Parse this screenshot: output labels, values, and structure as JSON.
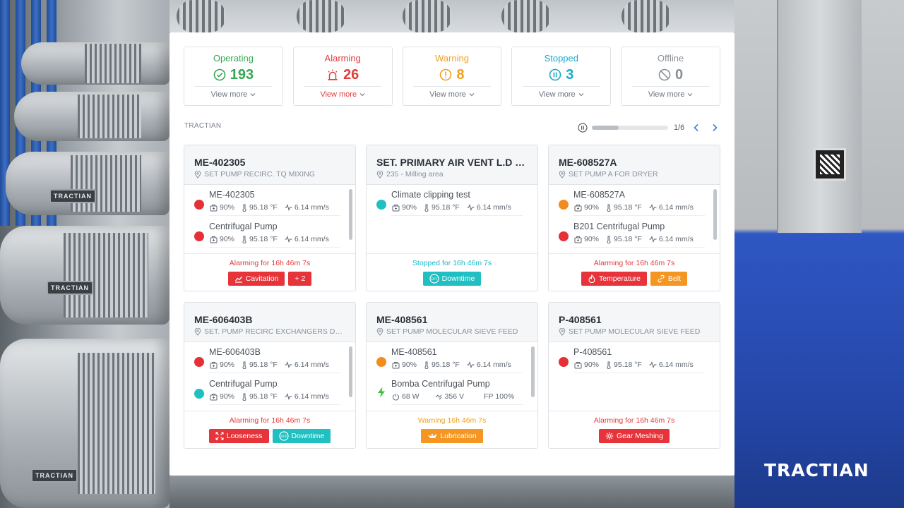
{
  "summary": [
    {
      "key": "operating",
      "title": "Operating",
      "count": "193",
      "more": "View more",
      "color": "#34a853",
      "icon": "check-circle-icon"
    },
    {
      "key": "alarming",
      "title": "Alarming",
      "count": "26",
      "more": "View more",
      "color": "#e23c3c",
      "icon": "siren-icon"
    },
    {
      "key": "warning",
      "title": "Warning",
      "count": "8",
      "more": "View more",
      "color": "#f0a020",
      "icon": "exclamation-circle-icon"
    },
    {
      "key": "stopped",
      "title": "Stopped",
      "count": "3",
      "more": "View more",
      "color": "#1ba9c6",
      "icon": "pause-circle-icon"
    },
    {
      "key": "offline",
      "title": "Offline",
      "count": "0",
      "more": "View more",
      "color": "#8b9096",
      "icon": "prohibited-icon"
    }
  ],
  "section_label": "TRACTIAN",
  "pager": {
    "text": "1/6",
    "progress": 0.35
  },
  "brand": "TRACTIAN",
  "cards": [
    {
      "title": "ME-402305",
      "subtitle": "SET PUMP RECIRC. TQ MIXING",
      "assets": [
        {
          "name": "ME-402305",
          "dot": "#e53038",
          "m1": "90%",
          "m2": "95.18 °F",
          "m3": "6.14 mm/s"
        },
        {
          "name": "Centrifugal Pump",
          "dot": "#e53038",
          "m1": "90%",
          "m2": "95.18 °F",
          "m3": "6.14 mm/s"
        }
      ],
      "status": "Alarming for",
      "status_color": "#e23c3c",
      "duration": "16h 46m 7s",
      "tags": [
        {
          "label": "Cavitation",
          "style": "red",
          "icon": "chart-line-icon"
        },
        {
          "label": "+ 2",
          "style": "red",
          "icon": ""
        }
      ]
    },
    {
      "title": "SET. PRIMARY AIR VENT L.D B...",
      "subtitle": "235 - Milling area",
      "assets": [
        {
          "name": "Climate clipping test",
          "dot": "#1fbfc2",
          "m1": "90%",
          "m2": "95.18 °F",
          "m3": "6.14 mm/s"
        }
      ],
      "status": "Stopped for",
      "status_color": "#1fb7c7",
      "duration": "16h 46m 7s",
      "tags": [
        {
          "label": "Downtime",
          "style": "teal",
          "icon": "off-icon"
        }
      ]
    },
    {
      "title": "ME-608527A",
      "subtitle": "SET PUMP A FOR DRYER",
      "assets": [
        {
          "name": "ME-608527A",
          "dot": "#f28c1e",
          "m1": "90%",
          "m2": "95.18 °F",
          "m3": "6.14 mm/s"
        },
        {
          "name": "B201 Centrifugal Pump",
          "dot": "#e53038",
          "m1": "90%",
          "m2": "95.18 °F",
          "m3": "6.14 mm/s"
        }
      ],
      "status": "Alarming for",
      "status_color": "#e23c3c",
      "duration": "16h 46m 7s",
      "tags": [
        {
          "label": "Temperature",
          "style": "red",
          "icon": "flame-icon"
        },
        {
          "label": "Belt",
          "style": "orange",
          "icon": "link-icon"
        }
      ]
    },
    {
      "title": "ME-606403B",
      "subtitle": "SET. PUMP RECIRC EXCHANGERS DOR...",
      "assets": [
        {
          "name": "ME-606403B",
          "dot": "#e53038",
          "m1": "90%",
          "m2": "95.18 °F",
          "m3": "6.14 mm/s"
        },
        {
          "name": "Centrifugal Pump",
          "dot": "#1fbfc2",
          "m1": "90%",
          "m2": "95.18 °F",
          "m3": "6.14 mm/s"
        }
      ],
      "status": "Alarming for",
      "status_color": "#e23c3c",
      "duration": "16h 46m 7s",
      "tags": [
        {
          "label": "Looseness",
          "style": "red",
          "icon": "arrows-out-icon"
        },
        {
          "label": "Downtime",
          "style": "teal",
          "icon": "off-icon"
        }
      ]
    },
    {
      "title": "ME-408561",
      "subtitle": "SET PUMP MOLECULAR SIEVE FEED",
      "assets": [
        {
          "name": "ME-408561",
          "dot": "#f28c1e",
          "m1": "90%",
          "m2": "95.18 °F",
          "m3": "6.14 mm/s"
        },
        {
          "name": "Bomba Centrifugal Pump",
          "dot": "bolt",
          "m1": "68 W",
          "m2": "356 V",
          "m3": "100%",
          "m3_prefix": "FP",
          "electric": true
        }
      ],
      "status": "Warning",
      "status_color": "#f0a020",
      "duration": "16h 46m 7s",
      "tags": [
        {
          "label": "Lubrication",
          "style": "orange",
          "icon": "oil-can-icon"
        }
      ]
    },
    {
      "title": "P-408561",
      "subtitle": "SET PUMP MOLECULAR SIEVE FEED",
      "assets": [
        {
          "name": "P-408561",
          "dot": "#e53038",
          "m1": "90%",
          "m2": "95.18 °F",
          "m3": "6.14 mm/s"
        }
      ],
      "status": "Alarming for",
      "status_color": "#e23c3c",
      "duration": "16h 46m 7s",
      "tags": [
        {
          "label": "Gear Meshing",
          "style": "red",
          "icon": "gear-icon"
        }
      ]
    }
  ]
}
